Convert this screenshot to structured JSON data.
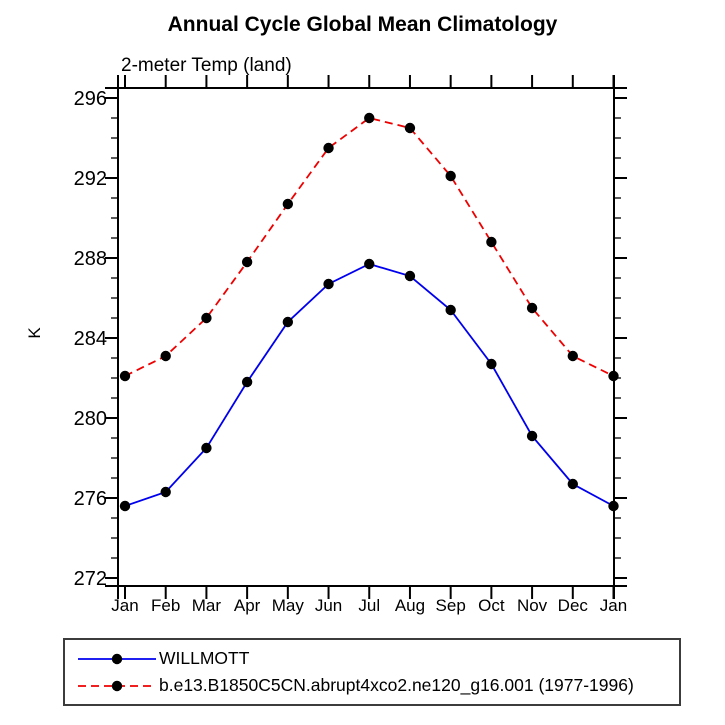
{
  "page": {
    "background": "#ffffff"
  },
  "chart_data": {
    "type": "line",
    "title": "Annual Cycle Global Mean Climatology",
    "subtitle": "2-meter Temp (land)",
    "ylabel": "K",
    "xlabel": "",
    "categories": [
      "Jan",
      "Feb",
      "Mar",
      "Apr",
      "May",
      "Jun",
      "Jul",
      "Aug",
      "Sep",
      "Oct",
      "Nov",
      "Dec",
      "Jan"
    ],
    "series": [
      {
        "name": "WILLMOTT",
        "color": "#0000ee",
        "line_style": "solid",
        "marker": "filled-circle",
        "values": [
          275.6,
          276.3,
          278.5,
          281.8,
          284.8,
          286.7,
          287.7,
          287.1,
          285.4,
          282.7,
          279.1,
          276.7,
          275.6
        ]
      },
      {
        "name": "b.e13.B1850C5CN.abrupt4xco2.ne120_g16.001 (1977-1996)",
        "color": "#ee0000",
        "line_style": "dashed",
        "marker": "filled-circle",
        "values": [
          282.1,
          283.1,
          285.0,
          287.8,
          290.7,
          293.5,
          295.0,
          294.5,
          292.1,
          288.8,
          285.5,
          283.1,
          282.1
        ]
      }
    ],
    "yticks": [
      272,
      276,
      280,
      284,
      288,
      292,
      296
    ],
    "minor_tick_step": 1,
    "ylim": [
      271.6,
      296.5
    ],
    "grid": false,
    "marker_color": "#000000",
    "axis_color": "#000000",
    "legend_position": "bottom-left"
  }
}
